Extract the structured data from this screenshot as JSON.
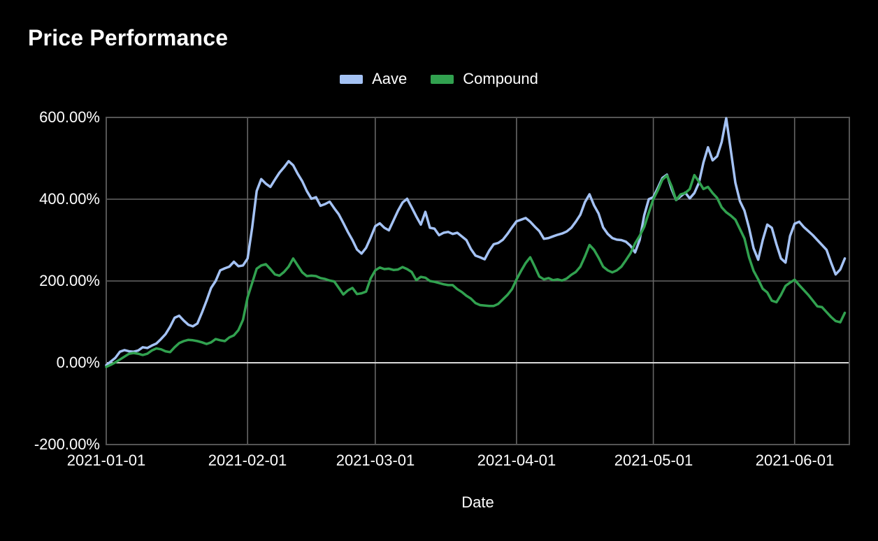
{
  "page": {
    "background": "#000000",
    "title": "Price Performance"
  },
  "legend": {
    "items": [
      {
        "label": "Aave",
        "color": "#a4c2f4"
      },
      {
        "label": "Compound",
        "color": "#31a14f"
      }
    ]
  },
  "chart_data": {
    "type": "line",
    "title": "Price Performance",
    "xlabel": "Date",
    "ylabel": "",
    "x_unit": "days_since_2021-01-01",
    "x_domain": [
      0,
      163
    ],
    "ylim": [
      -200,
      600
    ],
    "grid": true,
    "legend_position": "top-center",
    "background": "#000000",
    "zero_line_value": 0,
    "x_ticks": [
      {
        "day": 0,
        "label": "2021-01-01"
      },
      {
        "day": 31,
        "label": "2021-02-01"
      },
      {
        "day": 59,
        "label": "2021-03-01"
      },
      {
        "day": 90,
        "label": "2021-04-01"
      },
      {
        "day": 120,
        "label": "2021-05-01"
      },
      {
        "day": 151,
        "label": "2021-06-01"
      }
    ],
    "y_ticks": [
      {
        "value": -200,
        "label": "-200.00%"
      },
      {
        "value": 0,
        "label": "0.00%"
      },
      {
        "value": 200,
        "label": "200.00%"
      },
      {
        "value": 400,
        "label": "400.00%"
      },
      {
        "value": 600,
        "label": "600.00%"
      }
    ],
    "series": [
      {
        "name": "Aave",
        "color": "#a4c2f4",
        "values": [
          -6,
          3,
          12,
          27,
          31,
          28,
          27,
          30,
          38,
          36,
          42,
          47,
          58,
          70,
          88,
          110,
          115,
          103,
          93,
          89,
          96,
          123,
          152,
          183,
          200,
          226,
          231,
          235,
          247,
          236,
          238,
          255,
          330,
          420,
          449,
          438,
          430,
          448,
          465,
          478,
          493,
          483,
          462,
          444,
          420,
          401,
          405,
          384,
          388,
          394,
          378,
          363,
          342,
          320,
          300,
          277,
          267,
          281,
          306,
          334,
          341,
          330,
          324,
          348,
          372,
          392,
          401,
          380,
          358,
          338,
          369,
          330,
          328,
          312,
          318,
          320,
          315,
          318,
          309,
          300,
          278,
          262,
          258,
          253,
          274,
          290,
          293,
          301,
          315,
          331,
          346,
          350,
          354,
          345,
          333,
          322,
          303,
          305,
          309,
          313,
          316,
          321,
          330,
          345,
          362,
          393,
          412,
          385,
          365,
          331,
          315,
          305,
          301,
          300,
          296,
          286,
          270,
          300,
          360,
          400,
          405,
          428,
          452,
          460,
          425,
          398,
          407,
          416,
          402,
          415,
          440,
          490,
          527,
          495,
          505,
          540,
          598,
          520,
          440,
          395,
          372,
          330,
          280,
          252,
          300,
          338,
          330,
          290,
          255,
          245,
          310,
          340,
          345,
          332,
          322,
          312,
          300,
          288,
          276,
          245,
          216,
          228,
          255
        ]
      },
      {
        "name": "Compound",
        "color": "#31a14f",
        "values": [
          -10,
          -5,
          1,
          8,
          15,
          22,
          24,
          22,
          19,
          22,
          30,
          35,
          33,
          28,
          26,
          38,
          48,
          53,
          56,
          55,
          53,
          50,
          46,
          50,
          58,
          55,
          53,
          62,
          67,
          80,
          105,
          160,
          195,
          230,
          238,
          241,
          229,
          216,
          213,
          222,
          235,
          255,
          238,
          221,
          212,
          213,
          212,
          207,
          205,
          201,
          199,
          183,
          167,
          177,
          183,
          168,
          170,
          174,
          206,
          226,
          233,
          229,
          230,
          227,
          228,
          234,
          229,
          222,
          202,
          210,
          208,
          200,
          198,
          195,
          192,
          190,
          190,
          180,
          173,
          164,
          157,
          146,
          141,
          140,
          139,
          139,
          144,
          155,
          166,
          180,
          204,
          225,
          244,
          258,
          235,
          211,
          204,
          207,
          202,
          204,
          201,
          206,
          215,
          222,
          235,
          260,
          288,
          276,
          257,
          235,
          226,
          221,
          226,
          235,
          251,
          268,
          292,
          310,
          332,
          367,
          400,
          422,
          448,
          458,
          432,
          398,
          412,
          415,
          425,
          459,
          443,
          425,
          430,
          415,
          403,
          380,
          368,
          360,
          350,
          327,
          304,
          258,
          225,
          204,
          181,
          172,
          152,
          148,
          166,
          188,
          196,
          203,
          190,
          178,
          166,
          152,
          138,
          136,
          124,
          112,
          102,
          99,
          122
        ]
      }
    ]
  }
}
